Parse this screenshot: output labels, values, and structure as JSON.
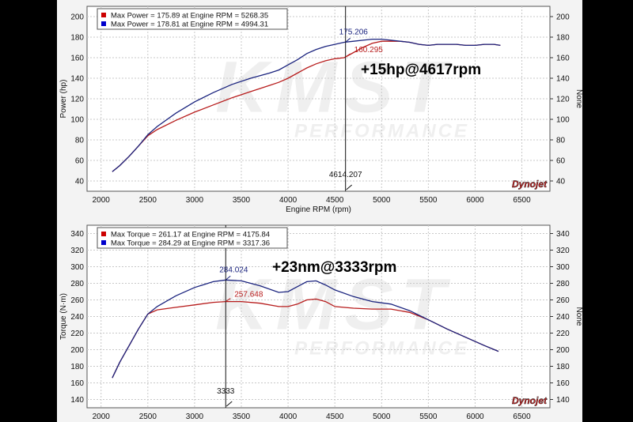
{
  "watermark": {
    "main": "KMST",
    "sub": "PERFORMANCE"
  },
  "dynojet_logo": "Dynojet",
  "chart_data": [
    {
      "type": "line",
      "xlabel": "Engine RPM (rpm)",
      "ylabel": "Power (hp)",
      "ylabel_right": "None",
      "xlim": [
        1850,
        6800
      ],
      "ylim": [
        30,
        210
      ],
      "xticks": [
        "1500",
        "2000",
        "2500",
        "3000",
        "3500",
        "4000",
        "4500",
        "5000",
        "5500",
        "6000",
        "6500"
      ],
      "yticks": [
        "40",
        "60",
        "80",
        "100",
        "120",
        "140",
        "160",
        "180",
        "200"
      ],
      "grid": true,
      "legend_position": "top-left",
      "legend": [
        {
          "text": "Max Power = 175.89 at Engine RPM = 5268.35",
          "color": "#cc0000"
        },
        {
          "text": "Max Power = 178.81 at Engine RPM = 4994.31",
          "color": "#0000cc"
        }
      ],
      "annotation": "+15hp@4617rpm",
      "cursor": {
        "x": 4614.207,
        "x_label": "4614.207"
      },
      "cursor_values": [
        {
          "value": "175.206",
          "color": "#1a237e"
        },
        {
          "value": "160.295",
          "color": "#b71c1c"
        }
      ],
      "series": [
        {
          "color": "#b71c1c",
          "x": [
            2120,
            2200,
            2300,
            2400,
            2500,
            2600,
            2800,
            3000,
            3200,
            3400,
            3600,
            3800,
            3900,
            4000,
            4100,
            4200,
            4300,
            4400,
            4500,
            4600,
            4700,
            4800,
            4900,
            5000,
            5100,
            5200,
            5300,
            5400,
            5500,
            5600,
            5700,
            5800,
            5900,
            6000,
            6100,
            6200,
            6270
          ],
          "y": [
            49,
            55,
            64,
            74,
            84,
            90,
            99,
            107,
            114,
            121,
            127,
            133,
            136,
            140,
            145,
            150,
            154,
            157,
            159,
            160,
            165,
            170,
            174,
            176,
            176,
            176,
            175,
            173,
            172,
            173,
            173,
            173,
            172,
            172,
            173,
            173,
            172
          ]
        },
        {
          "color": "#1a237e",
          "x": [
            2120,
            2200,
            2300,
            2400,
            2500,
            2600,
            2800,
            3000,
            3200,
            3400,
            3600,
            3800,
            3900,
            4000,
            4100,
            4200,
            4300,
            4400,
            4500,
            4600,
            4700,
            4800,
            4900,
            5000,
            5100,
            5200,
            5300,
            5400,
            5500,
            5600,
            5700,
            5800,
            5900,
            6000,
            6100,
            6200,
            6270
          ],
          "y": [
            49,
            55,
            64,
            74,
            85,
            93,
            106,
            117,
            126,
            134,
            140,
            145,
            148,
            153,
            158,
            164,
            168,
            171,
            173,
            175,
            176,
            177,
            178,
            178,
            177,
            176,
            175,
            173,
            172,
            173,
            173,
            173,
            172,
            172,
            173,
            173,
            172
          ]
        }
      ]
    },
    {
      "type": "line",
      "xlabel": "",
      "ylabel": "Torque (N·m)",
      "ylabel_right": "None",
      "xlim": [
        1850,
        6800
      ],
      "ylim": [
        130,
        350
      ],
      "xticks": [
        "1500",
        "2000",
        "2500",
        "3000",
        "3500",
        "4000",
        "4500",
        "5000",
        "5500",
        "6000",
        "6500"
      ],
      "yticks": [
        "140",
        "160",
        "180",
        "200",
        "220",
        "240",
        "260",
        "280",
        "300",
        "320",
        "340"
      ],
      "grid": true,
      "legend_position": "top-left",
      "legend": [
        {
          "text": "Max Torque = 261.17 at Engine RPM = 4175.84",
          "color": "#cc0000"
        },
        {
          "text": "Max Torque = 284.29 at Engine RPM = 3317.36",
          "color": "#0000cc"
        }
      ],
      "annotation": "+23nm@3333rpm",
      "cursor": {
        "x": 3333,
        "x_label": "3333"
      },
      "cursor_values": [
        {
          "value": "284.024",
          "color": "#1a237e"
        },
        {
          "value": "257.648",
          "color": "#b71c1c"
        }
      ],
      "series": [
        {
          "color": "#b71c1c",
          "x": [
            2120,
            2200,
            2300,
            2400,
            2500,
            2600,
            2800,
            3000,
            3200,
            3333,
            3500,
            3700,
            3900,
            4000,
            4100,
            4200,
            4300,
            4400,
            4500,
            4700,
            4900,
            5100,
            5300,
            5500,
            5700,
            5900,
            6100,
            6250
          ],
          "y": [
            166,
            185,
            205,
            225,
            243,
            248,
            251,
            254,
            257,
            258,
            258,
            256,
            252,
            252,
            255,
            260,
            261,
            258,
            252,
            250,
            249,
            249,
            245,
            236,
            225,
            215,
            205,
            198
          ]
        },
        {
          "color": "#1a237e",
          "x": [
            2120,
            2200,
            2300,
            2400,
            2500,
            2600,
            2800,
            3000,
            3200,
            3333,
            3500,
            3700,
            3900,
            4000,
            4100,
            4200,
            4300,
            4400,
            4500,
            4700,
            4900,
            5100,
            5300,
            5500,
            5700,
            5900,
            6100,
            6250
          ],
          "y": [
            166,
            185,
            205,
            225,
            243,
            252,
            265,
            275,
            282,
            284,
            283,
            277,
            269,
            270,
            276,
            282,
            283,
            278,
            272,
            264,
            258,
            255,
            247,
            236,
            225,
            215,
            205,
            198
          ]
        }
      ]
    }
  ]
}
